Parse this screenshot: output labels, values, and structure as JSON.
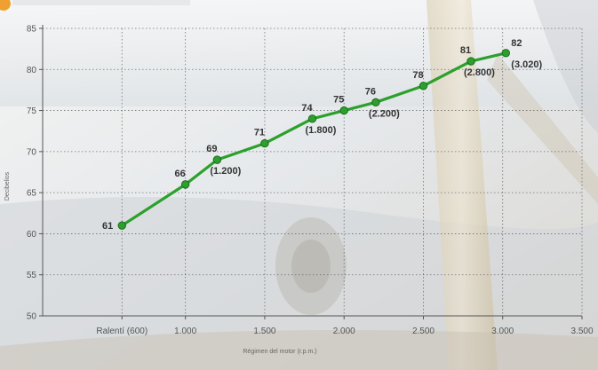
{
  "chart_data": {
    "type": "line",
    "title": "",
    "xlabel": "Régimen del motor (r.p.m.)",
    "ylabel": "Decibelios",
    "x_tick_labels": [
      "Ralentí (600)",
      "1.000",
      "1.500",
      "2.000",
      "2.500",
      "3.000",
      "3.500"
    ],
    "x_ticks": [
      600,
      1000,
      1500,
      2000,
      2500,
      3000,
      3500
    ],
    "y_ticks": [
      50,
      55,
      60,
      65,
      70,
      75,
      80,
      85
    ],
    "xlim": [
      100,
      3500
    ],
    "ylim": [
      50,
      85
    ],
    "grid": true,
    "series": [
      {
        "color": "#2ca02c",
        "points": [
          {
            "x": 600,
            "y": 61,
            "label": "61"
          },
          {
            "x": 1000,
            "y": 66,
            "label": "66"
          },
          {
            "x": 1200,
            "y": 69,
            "label": "69",
            "note": "(1.200)"
          },
          {
            "x": 1500,
            "y": 71,
            "label": "71"
          },
          {
            "x": 1800,
            "y": 74,
            "label": "74",
            "note": "(1.800)"
          },
          {
            "x": 2000,
            "y": 75,
            "label": "75"
          },
          {
            "x": 2200,
            "y": 76,
            "label": "76",
            "note": "(2.200)"
          },
          {
            "x": 2500,
            "y": 78,
            "label": "78"
          },
          {
            "x": 2800,
            "y": 81,
            "label": "81",
            "note": "(2.800)"
          },
          {
            "x": 3020,
            "y": 82,
            "label": "82",
            "note": "(3.020)"
          }
        ]
      }
    ]
  }
}
